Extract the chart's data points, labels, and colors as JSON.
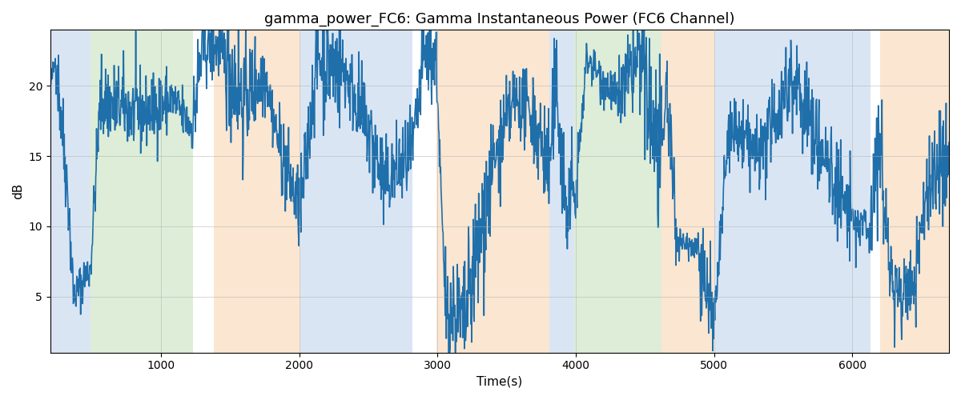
{
  "title": "gamma_power_FC6: Gamma Instantaneous Power (FC6 Channel)",
  "xlabel": "Time(s)",
  "ylabel": "dB",
  "xlim": [
    200,
    6700
  ],
  "ylim": [
    1,
    24
  ],
  "yticks": [
    5,
    10,
    15,
    20
  ],
  "line_color": "#1f6fab",
  "line_width": 1.2,
  "bg_color": "#ffffff",
  "grid_color": "#b0b0b0",
  "colored_bands": [
    {
      "xmin": 200,
      "xmax": 490,
      "color": "#aec6e8",
      "alpha": 0.45
    },
    {
      "xmin": 490,
      "xmax": 1230,
      "color": "#b5d9a8",
      "alpha": 0.45
    },
    {
      "xmin": 1380,
      "xmax": 2010,
      "color": "#f7c99a",
      "alpha": 0.45
    },
    {
      "xmin": 2010,
      "xmax": 2820,
      "color": "#aec6e8",
      "alpha": 0.45
    },
    {
      "xmin": 2990,
      "xmax": 3810,
      "color": "#f7c99a",
      "alpha": 0.45
    },
    {
      "xmin": 3810,
      "xmax": 3990,
      "color": "#aec6e8",
      "alpha": 0.45
    },
    {
      "xmin": 3990,
      "xmax": 4620,
      "color": "#b5d9a8",
      "alpha": 0.45
    },
    {
      "xmin": 4620,
      "xmax": 5000,
      "color": "#f7c99a",
      "alpha": 0.45
    },
    {
      "xmin": 5000,
      "xmax": 6130,
      "color": "#aec6e8",
      "alpha": 0.45
    },
    {
      "xmin": 6200,
      "xmax": 6700,
      "color": "#f7c99a",
      "alpha": 0.45
    }
  ],
  "seed": 42
}
